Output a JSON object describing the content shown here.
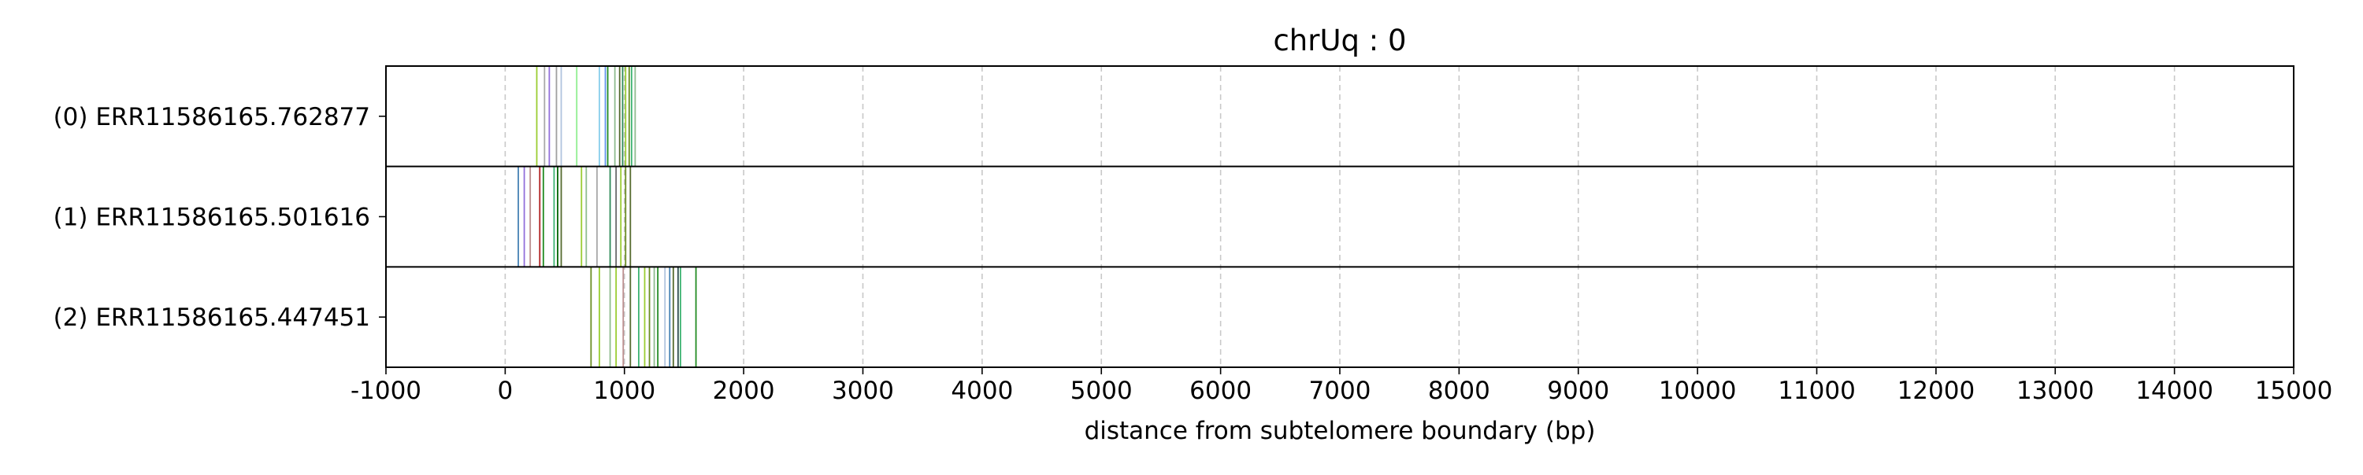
{
  "chart_data": {
    "type": "strip",
    "title": "chrUq : 0",
    "xlabel": "distance from subtelomere boundary (bp)",
    "xlim": [
      -1000,
      15000
    ],
    "x_ticks": [
      -1000,
      0,
      1000,
      2000,
      3000,
      4000,
      5000,
      6000,
      7000,
      8000,
      9000,
      10000,
      11000,
      12000,
      13000,
      14000,
      15000
    ],
    "x_tick_labels": [
      "-1000",
      "0",
      "1000",
      "2000",
      "3000",
      "4000",
      "5000",
      "6000",
      "7000",
      "8000",
      "9000",
      "10000",
      "11000",
      "12000",
      "13000",
      "14000",
      "15000"
    ],
    "grid": "vertical dashed",
    "rows": [
      {
        "label": "(0) ERR11586165.762877",
        "marks": [
          {
            "x": 265,
            "color": "#9acd32"
          },
          {
            "x": 330,
            "color": "#a9a9a9"
          },
          {
            "x": 370,
            "color": "#9370db"
          },
          {
            "x": 430,
            "color": "#a0a0a0"
          },
          {
            "x": 470,
            "color": "#b0c4de"
          },
          {
            "x": 600,
            "color": "#90ee90"
          },
          {
            "x": 790,
            "color": "#87ceeb"
          },
          {
            "x": 840,
            "color": "#6495ed"
          },
          {
            "x": 860,
            "color": "#228b22"
          },
          {
            "x": 920,
            "color": "#8fbc8f"
          },
          {
            "x": 960,
            "color": "#556b2f"
          },
          {
            "x": 985,
            "color": "#2e8b57"
          },
          {
            "x": 1010,
            "color": "#9acd32"
          },
          {
            "x": 1040,
            "color": "#6b8e23"
          },
          {
            "x": 1060,
            "color": "#3cb371"
          },
          {
            "x": 1090,
            "color": "#8fbc8f"
          }
        ]
      },
      {
        "label": "(1) ERR11586165.501616",
        "marks": [
          {
            "x": 110,
            "color": "#4682b4"
          },
          {
            "x": 160,
            "color": "#9370db"
          },
          {
            "x": 210,
            "color": "#bc8f8f"
          },
          {
            "x": 290,
            "color": "#b22222"
          },
          {
            "x": 320,
            "color": "#228b22"
          },
          {
            "x": 410,
            "color": "#3cb371"
          },
          {
            "x": 440,
            "color": "#006400"
          },
          {
            "x": 470,
            "color": "#556b2f"
          },
          {
            "x": 640,
            "color": "#9acd32"
          },
          {
            "x": 680,
            "color": "#8fbc8f"
          },
          {
            "x": 770,
            "color": "#a9a9a9"
          },
          {
            "x": 880,
            "color": "#2e8b57"
          },
          {
            "x": 930,
            "color": "#696969"
          },
          {
            "x": 970,
            "color": "#9acd32"
          },
          {
            "x": 1010,
            "color": "#6b8e23"
          },
          {
            "x": 1050,
            "color": "#556b2f"
          }
        ]
      },
      {
        "label": "(2) ERR11586165.447451",
        "marks": [
          {
            "x": 720,
            "color": "#6b8e23"
          },
          {
            "x": 790,
            "color": "#9acd32"
          },
          {
            "x": 880,
            "color": "#8fbc8f"
          },
          {
            "x": 930,
            "color": "#9acd32"
          },
          {
            "x": 990,
            "color": "#bc8f8f"
          },
          {
            "x": 1050,
            "color": "#556b2f"
          },
          {
            "x": 1120,
            "color": "#3cb371"
          },
          {
            "x": 1170,
            "color": "#9acd32"
          },
          {
            "x": 1210,
            "color": "#6b8e23"
          },
          {
            "x": 1250,
            "color": "#8fbc8f"
          },
          {
            "x": 1280,
            "color": "#228b22"
          },
          {
            "x": 1340,
            "color": "#b0c4de"
          },
          {
            "x": 1380,
            "color": "#4682b4"
          },
          {
            "x": 1410,
            "color": "#556b2f"
          },
          {
            "x": 1450,
            "color": "#2f4f4f"
          },
          {
            "x": 1470,
            "color": "#3cb371"
          },
          {
            "x": 1600,
            "color": "#228b22"
          }
        ]
      }
    ]
  }
}
